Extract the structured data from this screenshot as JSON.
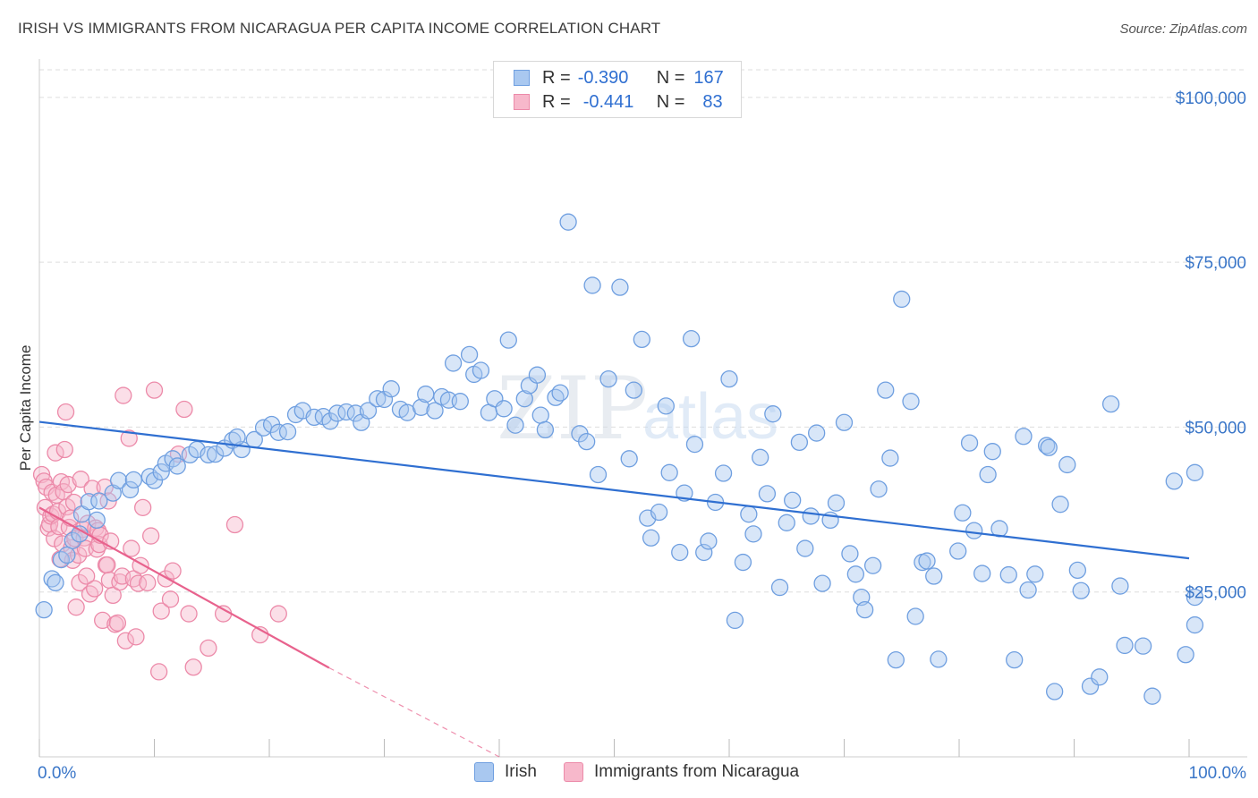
{
  "title": "IRISH VS IMMIGRANTS FROM NICARAGUA PER CAPITA INCOME CORRELATION CHART",
  "source": "Source: ZipAtlas.com",
  "watermark": {
    "zip": "ZIP",
    "atlas": "atlas"
  },
  "legend": {
    "irish": {
      "r_label": "R =",
      "r_value": "-0.390",
      "n_label": "N =",
      "n_value": "167"
    },
    "nicaragua": {
      "r_label": "R =",
      "r_value": "-0.441",
      "n_label": "N =",
      "n_value": "83"
    }
  },
  "bottom_legend": {
    "irish": "Irish",
    "nicaragua": "Immigrants from Nicaragua"
  },
  "colors": {
    "irish_fill": "#a9c8f0",
    "irish_stroke": "#6f9fe0",
    "irish_line": "#2f6fd1",
    "nic_fill": "#f7b8cb",
    "nic_stroke": "#ec8aa9",
    "nic_line": "#e8628d",
    "axis_text": "#3a76c8",
    "grid": "#dddddd"
  },
  "chart_data": {
    "type": "scatter",
    "title": "IRISH VS IMMIGRANTS FROM NICARAGUA PER CAPITA INCOME CORRELATION CHART",
    "xlabel": "",
    "ylabel": "Per Capita Income",
    "xlim": [
      0,
      100
    ],
    "ylim": [
      0,
      105000
    ],
    "x_tick_labels": [
      "0.0%",
      "100.0%"
    ],
    "y_ticks": [
      25000,
      50000,
      75000,
      100000
    ],
    "y_tick_labels": [
      "$25,000",
      "$50,000",
      "$75,000",
      "$100,000"
    ],
    "grid": true,
    "series": [
      {
        "name": "Irish",
        "r": -0.39,
        "n": 167,
        "trend": {
          "x": [
            0,
            100
          ],
          "y": [
            50800,
            30100
          ]
        },
        "points": [
          [
            0.4,
            22300
          ],
          [
            1.1,
            27000
          ],
          [
            1.4,
            26400
          ],
          [
            1.9,
            29900
          ],
          [
            2.4,
            30600
          ],
          [
            2.9,
            32800
          ],
          [
            3.5,
            33800
          ],
          [
            3.7,
            36800
          ],
          [
            4.3,
            38700
          ],
          [
            5.0,
            35900
          ],
          [
            5.2,
            38800
          ],
          [
            6.4,
            40000
          ],
          [
            6.9,
            41900
          ],
          [
            7.9,
            40500
          ],
          [
            8.2,
            42000
          ],
          [
            9.6,
            42500
          ],
          [
            10.0,
            41900
          ],
          [
            10.6,
            43200
          ],
          [
            11.0,
            44500
          ],
          [
            11.6,
            45200
          ],
          [
            12.0,
            44100
          ],
          [
            13.1,
            45800
          ],
          [
            13.7,
            46600
          ],
          [
            14.7,
            45800
          ],
          [
            15.3,
            45900
          ],
          [
            16.1,
            46800
          ],
          [
            16.8,
            48000
          ],
          [
            17.6,
            46600
          ],
          [
            17.2,
            48500
          ],
          [
            18.7,
            48100
          ],
          [
            19.5,
            49900
          ],
          [
            20.2,
            50400
          ],
          [
            20.8,
            49200
          ],
          [
            21.6,
            49300
          ],
          [
            22.3,
            51900
          ],
          [
            22.9,
            52500
          ],
          [
            23.9,
            51500
          ],
          [
            24.7,
            51600
          ],
          [
            25.3,
            50900
          ],
          [
            25.9,
            52100
          ],
          [
            26.7,
            52300
          ],
          [
            27.5,
            52100
          ],
          [
            28.0,
            50700
          ],
          [
            28.6,
            52500
          ],
          [
            29.4,
            54300
          ],
          [
            30.0,
            54200
          ],
          [
            30.6,
            55800
          ],
          [
            31.4,
            52700
          ],
          [
            32.0,
            52200
          ],
          [
            33.2,
            53000
          ],
          [
            33.6,
            55000
          ],
          [
            34.4,
            52500
          ],
          [
            35.0,
            54600
          ],
          [
            35.6,
            54100
          ],
          [
            36.0,
            59700
          ],
          [
            36.6,
            53900
          ],
          [
            37.4,
            61000
          ],
          [
            37.8,
            58000
          ],
          [
            38.4,
            58600
          ],
          [
            39.1,
            52200
          ],
          [
            39.6,
            54300
          ],
          [
            40.4,
            52800
          ],
          [
            40.8,
            63200
          ],
          [
            41.4,
            50300
          ],
          [
            42.2,
            54300
          ],
          [
            42.6,
            56300
          ],
          [
            43.3,
            57900
          ],
          [
            43.6,
            51800
          ],
          [
            44.0,
            49600
          ],
          [
            44.9,
            54500
          ],
          [
            45.3,
            55200
          ],
          [
            46.0,
            81100
          ],
          [
            47.0,
            49000
          ],
          [
            47.6,
            47800
          ],
          [
            48.1,
            71500
          ],
          [
            48.6,
            42800
          ],
          [
            49.5,
            57300
          ],
          [
            50.5,
            71200
          ],
          [
            51.3,
            45200
          ],
          [
            51.7,
            55600
          ],
          [
            52.4,
            63300
          ],
          [
            52.9,
            36200
          ],
          [
            53.2,
            33200
          ],
          [
            53.9,
            37100
          ],
          [
            54.5,
            53200
          ],
          [
            54.8,
            43100
          ],
          [
            55.7,
            31000
          ],
          [
            56.1,
            40000
          ],
          [
            56.7,
            63400
          ],
          [
            57.0,
            47400
          ],
          [
            57.8,
            31000
          ],
          [
            58.2,
            32700
          ],
          [
            58.8,
            38600
          ],
          [
            59.5,
            43000
          ],
          [
            60.0,
            57300
          ],
          [
            60.5,
            20700
          ],
          [
            61.2,
            29500
          ],
          [
            61.7,
            36800
          ],
          [
            62.1,
            33800
          ],
          [
            62.7,
            45400
          ],
          [
            63.3,
            39900
          ],
          [
            63.8,
            52000
          ],
          [
            64.4,
            25700
          ],
          [
            65.0,
            35500
          ],
          [
            65.5,
            38900
          ],
          [
            66.1,
            47700
          ],
          [
            66.6,
            31600
          ],
          [
            67.1,
            36500
          ],
          [
            67.6,
            49100
          ],
          [
            68.1,
            26300
          ],
          [
            68.8,
            35900
          ],
          [
            69.3,
            38500
          ],
          [
            70.0,
            50700
          ],
          [
            70.5,
            30800
          ],
          [
            71.0,
            27700
          ],
          [
            71.5,
            24200
          ],
          [
            71.8,
            22300
          ],
          [
            72.5,
            29000
          ],
          [
            73.0,
            40600
          ],
          [
            73.6,
            55600
          ],
          [
            74.0,
            45300
          ],
          [
            74.5,
            14700
          ],
          [
            75.0,
            69400
          ],
          [
            75.8,
            53900
          ],
          [
            76.2,
            21300
          ],
          [
            76.8,
            29500
          ],
          [
            77.2,
            29700
          ],
          [
            77.8,
            27400
          ],
          [
            78.2,
            14800
          ],
          [
            79.9,
            31200
          ],
          [
            80.3,
            37000
          ],
          [
            80.9,
            47600
          ],
          [
            81.3,
            34300
          ],
          [
            82.0,
            27800
          ],
          [
            82.5,
            42800
          ],
          [
            82.9,
            46300
          ],
          [
            83.5,
            34600
          ],
          [
            84.3,
            27600
          ],
          [
            84.8,
            14700
          ],
          [
            85.6,
            48600
          ],
          [
            86.0,
            25300
          ],
          [
            86.6,
            27700
          ],
          [
            87.6,
            47200
          ],
          [
            87.8,
            46900
          ],
          [
            88.3,
            9900
          ],
          [
            88.8,
            38300
          ],
          [
            89.4,
            44300
          ],
          [
            90.3,
            28300
          ],
          [
            90.6,
            25200
          ],
          [
            91.4,
            10700
          ],
          [
            92.2,
            12100
          ],
          [
            93.2,
            53500
          ],
          [
            94.0,
            25900
          ],
          [
            94.4,
            16900
          ],
          [
            96.0,
            16800
          ],
          [
            96.8,
            9200
          ],
          [
            98.7,
            41800
          ],
          [
            99.7,
            15500
          ],
          [
            101.0,
            43100
          ],
          [
            102.6,
            20000
          ],
          [
            104.2,
            24200
          ]
        ]
      },
      {
        "name": "Immigrants from Nicaragua",
        "r": -0.441,
        "n": 83,
        "trend": {
          "x": [
            0,
            25.2
          ],
          "y": [
            37800,
            13500
          ]
        },
        "trend_dashed": {
          "x": [
            25.2,
            40
          ],
          "y": [
            13500,
            -800
          ]
        },
        "points": [
          [
            0.2,
            42800
          ],
          [
            0.4,
            41800
          ],
          [
            0.5,
            37800
          ],
          [
            0.6,
            40900
          ],
          [
            0.8,
            34700
          ],
          [
            0.9,
            35300
          ],
          [
            1.0,
            36500
          ],
          [
            1.1,
            40100
          ],
          [
            1.2,
            36800
          ],
          [
            1.3,
            33100
          ],
          [
            1.4,
            46100
          ],
          [
            1.5,
            39700
          ],
          [
            1.6,
            37200
          ],
          [
            1.7,
            34900
          ],
          [
            1.8,
            30000
          ],
          [
            1.9,
            41700
          ],
          [
            2.0,
            32300
          ],
          [
            2.1,
            40200
          ],
          [
            2.2,
            46600
          ],
          [
            2.3,
            52300
          ],
          [
            2.4,
            37900
          ],
          [
            2.5,
            41300
          ],
          [
            2.6,
            34800
          ],
          [
            2.7,
            36200
          ],
          [
            2.8,
            31700
          ],
          [
            2.9,
            29800
          ],
          [
            3.0,
            38600
          ],
          [
            3.1,
            33100
          ],
          [
            3.2,
            22700
          ],
          [
            3.4,
            30600
          ],
          [
            3.5,
            26400
          ],
          [
            3.6,
            42100
          ],
          [
            3.8,
            34500
          ],
          [
            3.9,
            33200
          ],
          [
            4.0,
            31600
          ],
          [
            4.1,
            27400
          ],
          [
            4.2,
            35400
          ],
          [
            4.4,
            24700
          ],
          [
            4.6,
            40700
          ],
          [
            4.8,
            25500
          ],
          [
            4.9,
            34700
          ],
          [
            5.0,
            31500
          ],
          [
            5.1,
            34300
          ],
          [
            5.2,
            32200
          ],
          [
            5.3,
            33600
          ],
          [
            5.5,
            20700
          ],
          [
            5.7,
            40900
          ],
          [
            5.8,
            29100
          ],
          [
            5.9,
            29100
          ],
          [
            6.0,
            38800
          ],
          [
            6.1,
            26800
          ],
          [
            6.2,
            32700
          ],
          [
            6.4,
            24500
          ],
          [
            6.6,
            20100
          ],
          [
            6.8,
            20300
          ],
          [
            7.0,
            26500
          ],
          [
            7.2,
            27400
          ],
          [
            7.3,
            54800
          ],
          [
            7.5,
            17600
          ],
          [
            7.8,
            48300
          ],
          [
            8.0,
            31600
          ],
          [
            8.2,
            27000
          ],
          [
            8.4,
            18200
          ],
          [
            8.6,
            26300
          ],
          [
            8.8,
            29000
          ],
          [
            9.0,
            37800
          ],
          [
            9.4,
            26400
          ],
          [
            9.7,
            33500
          ],
          [
            10.0,
            55600
          ],
          [
            10.4,
            12900
          ],
          [
            10.6,
            22100
          ],
          [
            11.0,
            27000
          ],
          [
            11.4,
            23900
          ],
          [
            11.6,
            28200
          ],
          [
            12.1,
            45900
          ],
          [
            12.6,
            52700
          ],
          [
            13.0,
            21700
          ],
          [
            13.4,
            13600
          ],
          [
            14.7,
            16500
          ],
          [
            16.0,
            21700
          ],
          [
            17.0,
            35200
          ],
          [
            19.2,
            18500
          ],
          [
            20.8,
            21700
          ]
        ]
      }
    ]
  }
}
